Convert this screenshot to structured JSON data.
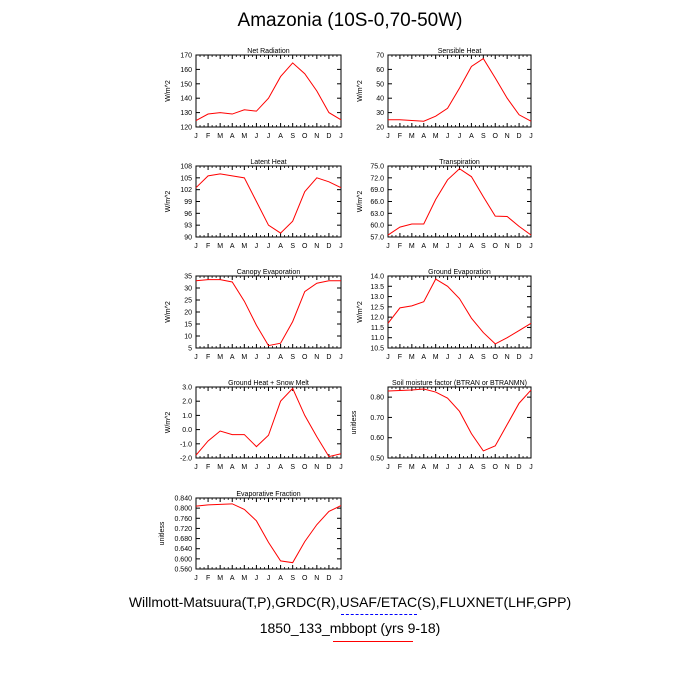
{
  "title": "Amazonia (10S-0,70-50W)",
  "caption_line1": "Willmott-Matsuura(T,P),GRDC(R),USAF/ETAC(S),FLUXNET(LHF,GPP)",
  "caption_line2": "1850_133_mbbopt (yrs 9-18)",
  "line_color": "#ff0000",
  "dash_color": "#0000ff",
  "chart_data": [
    {
      "type": "line",
      "title": "Net Radiation",
      "ylabel": "W/m^2",
      "categories": [
        "J",
        "F",
        "M",
        "A",
        "M",
        "J",
        "J",
        "A",
        "S",
        "O",
        "N",
        "D",
        "J"
      ],
      "ylim": [
        120,
        170
      ],
      "yticks": [
        120,
        130,
        140,
        150,
        160,
        170
      ],
      "ytick_labels": [
        "120",
        "130",
        "140",
        "150",
        "160",
        "170"
      ],
      "values": [
        124.5,
        129,
        130,
        129,
        132,
        131,
        140,
        155,
        164.5,
        157,
        145,
        130,
        125
      ]
    },
    {
      "type": "line",
      "title": "Sensible Heat",
      "ylabel": "W/m^2",
      "categories": [
        "J",
        "F",
        "M",
        "A",
        "M",
        "J",
        "J",
        "A",
        "S",
        "O",
        "N",
        "D",
        "J"
      ],
      "ylim": [
        20,
        70
      ],
      "yticks": [
        20,
        30,
        40,
        50,
        60,
        70
      ],
      "ytick_labels": [
        "20",
        "30",
        "40",
        "50",
        "60",
        "70"
      ],
      "values": [
        25,
        25,
        24.5,
        24,
        27.5,
        33,
        47,
        62,
        67.5,
        54,
        40,
        28.5,
        24
      ]
    },
    {
      "type": "line",
      "title": "Latent Heat",
      "ylabel": "W/m^2",
      "categories": [
        "J",
        "F",
        "M",
        "A",
        "M",
        "J",
        "J",
        "A",
        "S",
        "O",
        "N",
        "D",
        "J"
      ],
      "ylim": [
        90,
        108
      ],
      "yticks": [
        90,
        93,
        96,
        99,
        102,
        105,
        108
      ],
      "ytick_labels": [
        "90",
        "93",
        "96",
        "99",
        "102",
        "105",
        "108"
      ],
      "values": [
        102.5,
        105.5,
        106,
        105.5,
        105,
        99,
        93,
        91,
        94,
        101.5,
        105,
        104,
        102.5
      ]
    },
    {
      "type": "line",
      "title": "Transpiration",
      "ylabel": "W/m^2",
      "categories": [
        "J",
        "F",
        "M",
        "A",
        "M",
        "J",
        "J",
        "A",
        "S",
        "O",
        "N",
        "D",
        "J"
      ],
      "ylim": [
        57,
        75
      ],
      "yticks": [
        57,
        60,
        63,
        66,
        69,
        72,
        75
      ],
      "ytick_labels": [
        "57.0",
        "60.0",
        "63.0",
        "66.0",
        "69.0",
        "72.0",
        "75.0"
      ],
      "values": [
        57.5,
        59.5,
        60.3,
        60.3,
        66.5,
        71.5,
        74.3,
        72.3,
        67.2,
        62.3,
        62.2,
        59.7,
        57.5
      ]
    },
    {
      "type": "line",
      "title": "Canopy Evaporation",
      "ylabel": "W/m^2",
      "categories": [
        "J",
        "F",
        "M",
        "A",
        "M",
        "J",
        "J",
        "A",
        "S",
        "O",
        "N",
        "D",
        "J"
      ],
      "ylim": [
        5,
        35
      ],
      "yticks": [
        5,
        10,
        15,
        20,
        25,
        30,
        35
      ],
      "ytick_labels": [
        "5",
        "10",
        "15",
        "20",
        "25",
        "30",
        "35"
      ],
      "values": [
        33,
        33.5,
        33.5,
        32.5,
        24.5,
        14.5,
        6,
        7,
        16,
        28.5,
        32,
        33,
        33
      ]
    },
    {
      "type": "line",
      "title": "Ground Evaporation",
      "ylabel": "W/m^2",
      "categories": [
        "J",
        "F",
        "M",
        "A",
        "M",
        "J",
        "J",
        "A",
        "S",
        "O",
        "N",
        "D",
        "J"
      ],
      "ylim": [
        10.5,
        14.0
      ],
      "yticks": [
        10.5,
        11.0,
        11.5,
        12.0,
        12.5,
        13.0,
        13.5,
        14.0
      ],
      "ytick_labels": [
        "10.5",
        "11.0",
        "11.5",
        "12.0",
        "12.5",
        "13.0",
        "13.5",
        "14.0"
      ],
      "values": [
        11.7,
        12.45,
        12.55,
        12.75,
        13.85,
        13.5,
        12.9,
        11.95,
        11.25,
        10.7,
        11.0,
        11.35,
        11.7
      ]
    },
    {
      "type": "line",
      "title": "Ground Heat + Snow Melt",
      "ylabel": "W/m^2",
      "categories": [
        "J",
        "F",
        "M",
        "A",
        "M",
        "J",
        "J",
        "A",
        "S",
        "O",
        "N",
        "D",
        "J"
      ],
      "ylim": [
        -2.0,
        3.0
      ],
      "yticks": [
        -2.0,
        -1.0,
        0.0,
        1.0,
        2.0,
        3.0
      ],
      "ytick_labels": [
        "-2.0",
        "-1.0",
        "0.0",
        "1.0",
        "2.0",
        "3.0"
      ],
      "values": [
        -1.8,
        -0.8,
        -0.1,
        -0.35,
        -0.35,
        -1.2,
        -0.4,
        2.0,
        2.9,
        1.0,
        -0.5,
        -1.9,
        -1.7
      ]
    },
    {
      "type": "line",
      "title": "Soil moisture factor (BTRAN or BTRANMN)",
      "ylabel": "unitless",
      "categories": [
        "J",
        "F",
        "M",
        "A",
        "M",
        "J",
        "J",
        "A",
        "S",
        "O",
        "N",
        "D",
        "J"
      ],
      "ylim": [
        0.5,
        0.85
      ],
      "yticks": [
        0.5,
        0.6,
        0.7,
        0.8
      ],
      "ytick_labels": [
        "0.50",
        "0.60",
        "0.70",
        "0.80"
      ],
      "values": [
        0.83,
        0.833,
        0.835,
        0.84,
        0.825,
        0.795,
        0.73,
        0.62,
        0.535,
        0.56,
        0.665,
        0.77,
        0.835
      ]
    },
    {
      "type": "line",
      "title": "Evaporative Fraction",
      "ylabel": "unitless",
      "categories": [
        "J",
        "F",
        "M",
        "A",
        "M",
        "J",
        "J",
        "A",
        "S",
        "O",
        "N",
        "D",
        "J"
      ],
      "ylim": [
        0.56,
        0.84
      ],
      "yticks": [
        0.56,
        0.6,
        0.64,
        0.68,
        0.72,
        0.76,
        0.8,
        0.84
      ],
      "ytick_labels": [
        "0.560",
        "0.600",
        "0.640",
        "0.680",
        "0.720",
        "0.760",
        "0.800",
        "0.840"
      ],
      "values": [
        0.808,
        0.813,
        0.815,
        0.817,
        0.795,
        0.75,
        0.665,
        0.592,
        0.585,
        0.668,
        0.735,
        0.787,
        0.81
      ]
    }
  ]
}
